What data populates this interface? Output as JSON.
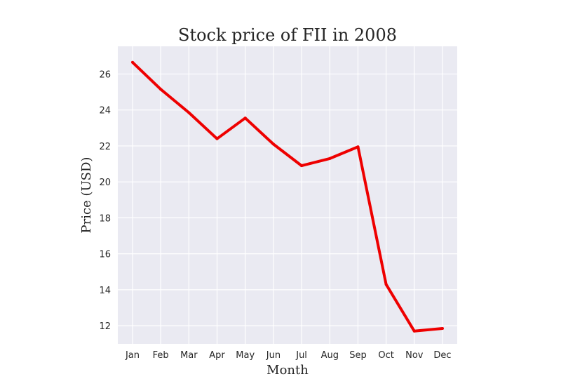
{
  "chart_data": {
    "type": "line",
    "title": "Stock price of FII in 2008",
    "xlabel": "Month",
    "ylabel": "Price (USD)",
    "categories": [
      "Jan",
      "Feb",
      "Mar",
      "Apr",
      "May",
      "Jun",
      "Jul",
      "Aug",
      "Sep",
      "Oct",
      "Nov",
      "Dec"
    ],
    "series": [
      {
        "values": [
          26.65,
          25.15,
          23.85,
          22.4,
          23.55,
          22.1,
          20.9,
          21.3,
          21.95,
          14.3,
          11.7,
          11.85
        ],
        "color": "#ee0000"
      }
    ],
    "ylim": [
      10.99,
      27.54
    ],
    "yticks": [
      12,
      14,
      16,
      18,
      20,
      22,
      24,
      26
    ],
    "grid": true,
    "legend": "none",
    "plot_background": "#eaeaf2",
    "grid_color": "#ffffff"
  }
}
